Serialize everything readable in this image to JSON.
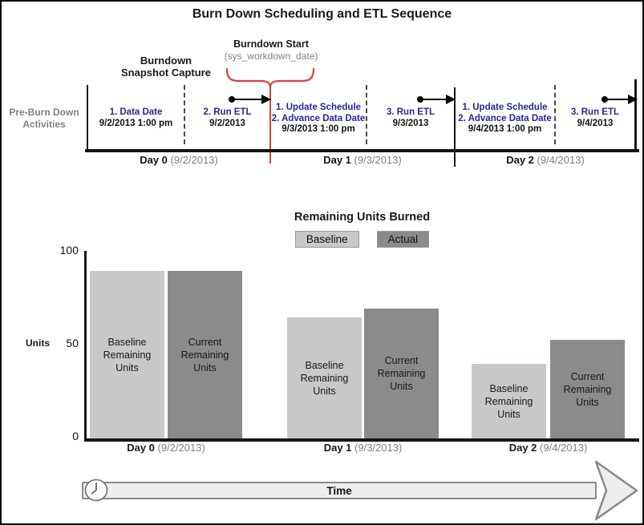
{
  "title": "Burn Down Scheduling and ETL Sequence",
  "timeline": {
    "pre_label": [
      "Pre-Burn Down",
      "Activities"
    ],
    "snapshot_label": [
      "Burndown",
      "Snapshot Capture"
    ],
    "burndown_start": {
      "label": "Burndown Start",
      "sublabel": "(sys_workdown_date)"
    },
    "segments": [
      {
        "lines": [
          "1. Data Date"
        ],
        "date": "9/2/2013 1:00 pm"
      },
      {
        "lines": [
          "2. Run ETL"
        ],
        "date": "9/2/2013"
      },
      {
        "lines": [
          "1. Update Schedule",
          "2. Advance Data Date"
        ],
        "date": "9/3/2013 1:00 pm"
      },
      {
        "lines": [
          "3. Run ETL"
        ],
        "date": "9/3/2013"
      },
      {
        "lines": [
          "1. Update Schedule",
          "2. Advance Data Date"
        ],
        "date": "9/4/2013 1:00 pm"
      },
      {
        "lines": [
          "3. Run ETL"
        ],
        "date": "9/4/2013"
      }
    ],
    "days": [
      {
        "label": "Day 0",
        "date": "(9/2/2013)"
      },
      {
        "label": "Day 1",
        "date": "(9/3/2013)"
      },
      {
        "label": "Day 2",
        "date": "(9/4/2013)"
      }
    ]
  },
  "chart_data": {
    "type": "bar",
    "title": "Remaining Units Burned",
    "categories": [
      "Day 0 (9/2/2013)",
      "Day 1 (9/3/2013)",
      "Day 2 (9/4/2013)"
    ],
    "series": [
      {
        "name": "Baseline",
        "bar_label": [
          "Baseline",
          "Remaining",
          "Units"
        ],
        "values": [
          90,
          65,
          40
        ],
        "color": "#c7c8ca"
      },
      {
        "name": "Actual",
        "bar_label": [
          "Current",
          "Remaining",
          "Units"
        ],
        "values": [
          90,
          70,
          53
        ],
        "color": "#8a8b8d"
      }
    ],
    "ylabel": "Units",
    "yticks": [
      0,
      50,
      100
    ],
    "ylim": [
      0,
      100
    ],
    "legend_position": "top-center",
    "grid": false
  },
  "footer": {
    "time_label": "Time"
  },
  "colors": {
    "activity_blue": "#26269c",
    "muted_gray": "#7e8083",
    "accent_red": "#e43d3b",
    "baseline_bar": "#c7c8ca",
    "actual_bar": "#8a8b8d",
    "timebar_fill": "#ededed",
    "timebar_border": "#8a8a8a"
  }
}
